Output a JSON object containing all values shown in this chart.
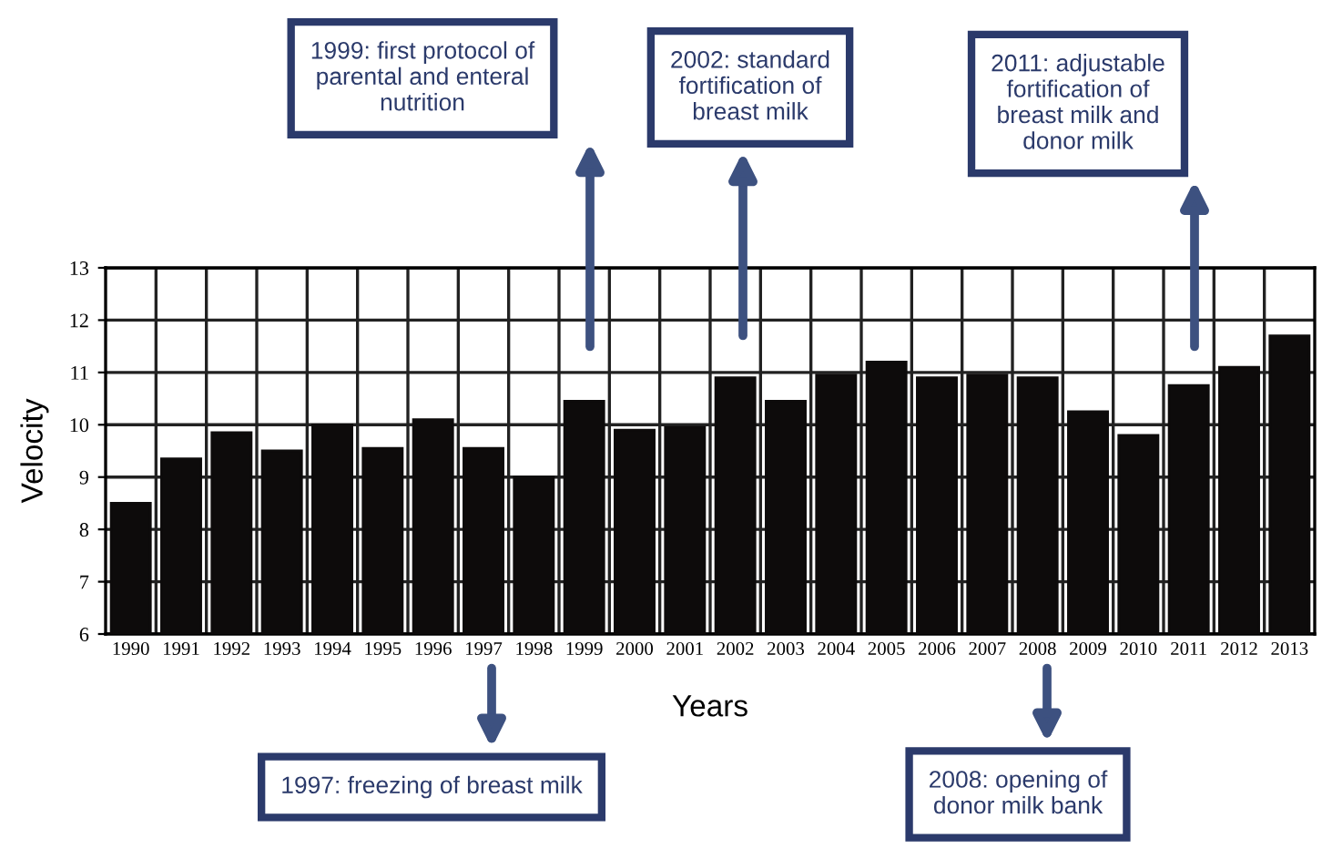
{
  "chart_data": {
    "type": "bar",
    "xlabel": "Years",
    "ylabel": "Velocity",
    "categories": [
      "1990",
      "1991",
      "1992",
      "1993",
      "1994",
      "1995",
      "1996",
      "1997",
      "1998",
      "1999",
      "2000",
      "2001",
      "2002",
      "2003",
      "2004",
      "2005",
      "2006",
      "2007",
      "2008",
      "2009",
      "2010",
      "2011",
      "2012",
      "2013"
    ],
    "values": [
      8.5,
      9.35,
      9.85,
      9.5,
      10.0,
      9.55,
      10.1,
      9.55,
      9.0,
      10.45,
      9.9,
      9.95,
      10.9,
      10.45,
      10.95,
      11.2,
      10.9,
      10.95,
      10.9,
      10.25,
      9.8,
      10.75,
      11.1,
      11.7
    ],
    "color": "#0d0b0b",
    "ylim": [
      6,
      13
    ],
    "yticks": [
      6,
      7,
      8,
      9,
      10,
      11,
      12,
      13
    ],
    "grid": true,
    "annotations": [
      "1999: first protocol of\nparental and enteral\nnutrition",
      "2002: standard\nfortification of\nbreast milk",
      "2011: adjustable\nfortification of\nbreast milk and\ndonor milk",
      "1997: freezing of breast milk",
      "2008: opening of\ndonor milk bank"
    ]
  }
}
